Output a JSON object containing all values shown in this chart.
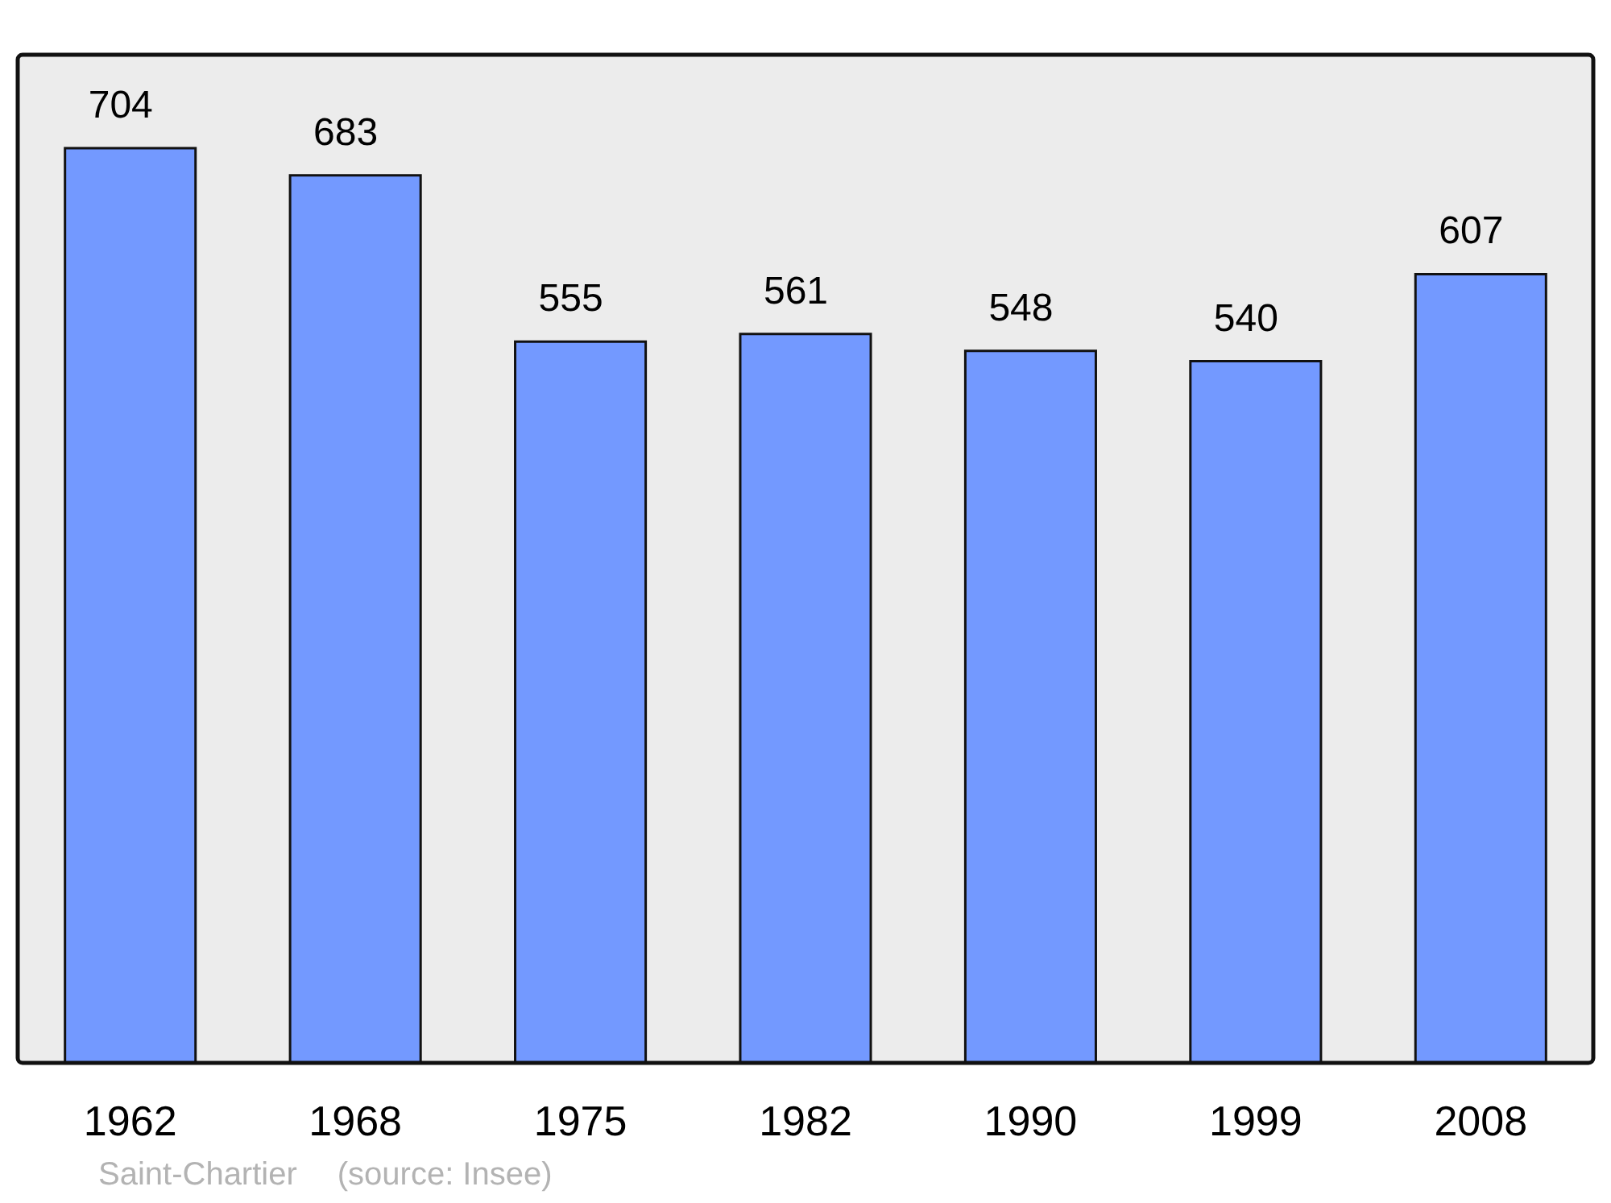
{
  "chart_data": {
    "type": "bar",
    "categories": [
      "1962",
      "1968",
      "1975",
      "1982",
      "1990",
      "1999",
      "2008"
    ],
    "values": [
      704,
      683,
      555,
      561,
      548,
      540,
      607
    ],
    "color": "#7399ff",
    "data_labels": true,
    "grid": false,
    "legend": false,
    "tick_labels": "x",
    "annotations": [
      "Saint-Chartier",
      "(source: Insee)"
    ]
  }
}
